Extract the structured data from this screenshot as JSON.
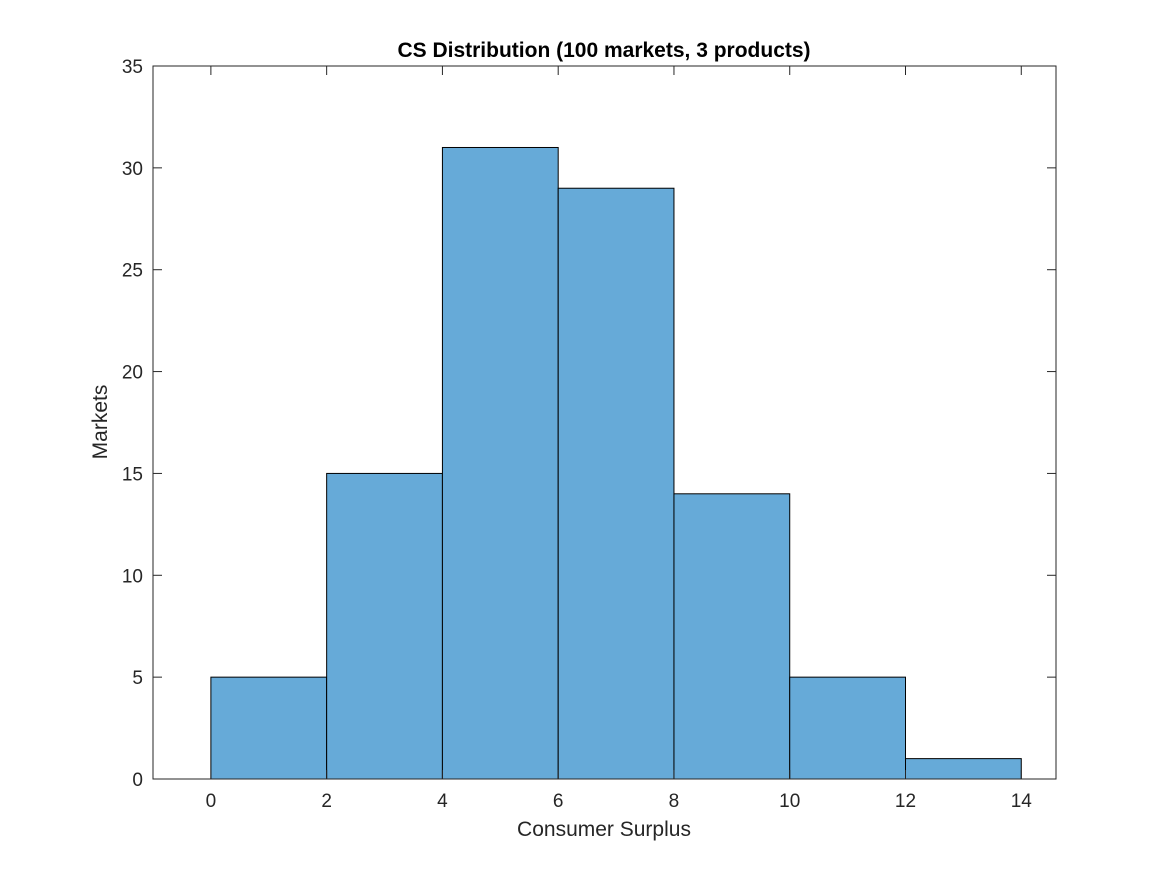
{
  "chart_data": {
    "type": "bar",
    "subtype": "histogram",
    "title": "CS Distribution (100 markets, 3 products)",
    "xlabel": "Consumer Surplus",
    "ylabel": "Markets",
    "bin_edges": [
      0,
      2,
      4,
      6,
      8,
      10,
      12,
      14
    ],
    "values": [
      5,
      15,
      31,
      29,
      14,
      5,
      1
    ],
    "xlim": [
      -1,
      14.6
    ],
    "ylim": [
      0,
      35
    ],
    "xticks": [
      0,
      2,
      4,
      6,
      8,
      10,
      12,
      14
    ],
    "yticks": [
      0,
      5,
      10,
      15,
      20,
      25,
      30,
      35
    ],
    "grid": false,
    "colors": {
      "bar_fill": "#66aad8",
      "bar_edge": "#000000",
      "axes": "#262626"
    }
  }
}
